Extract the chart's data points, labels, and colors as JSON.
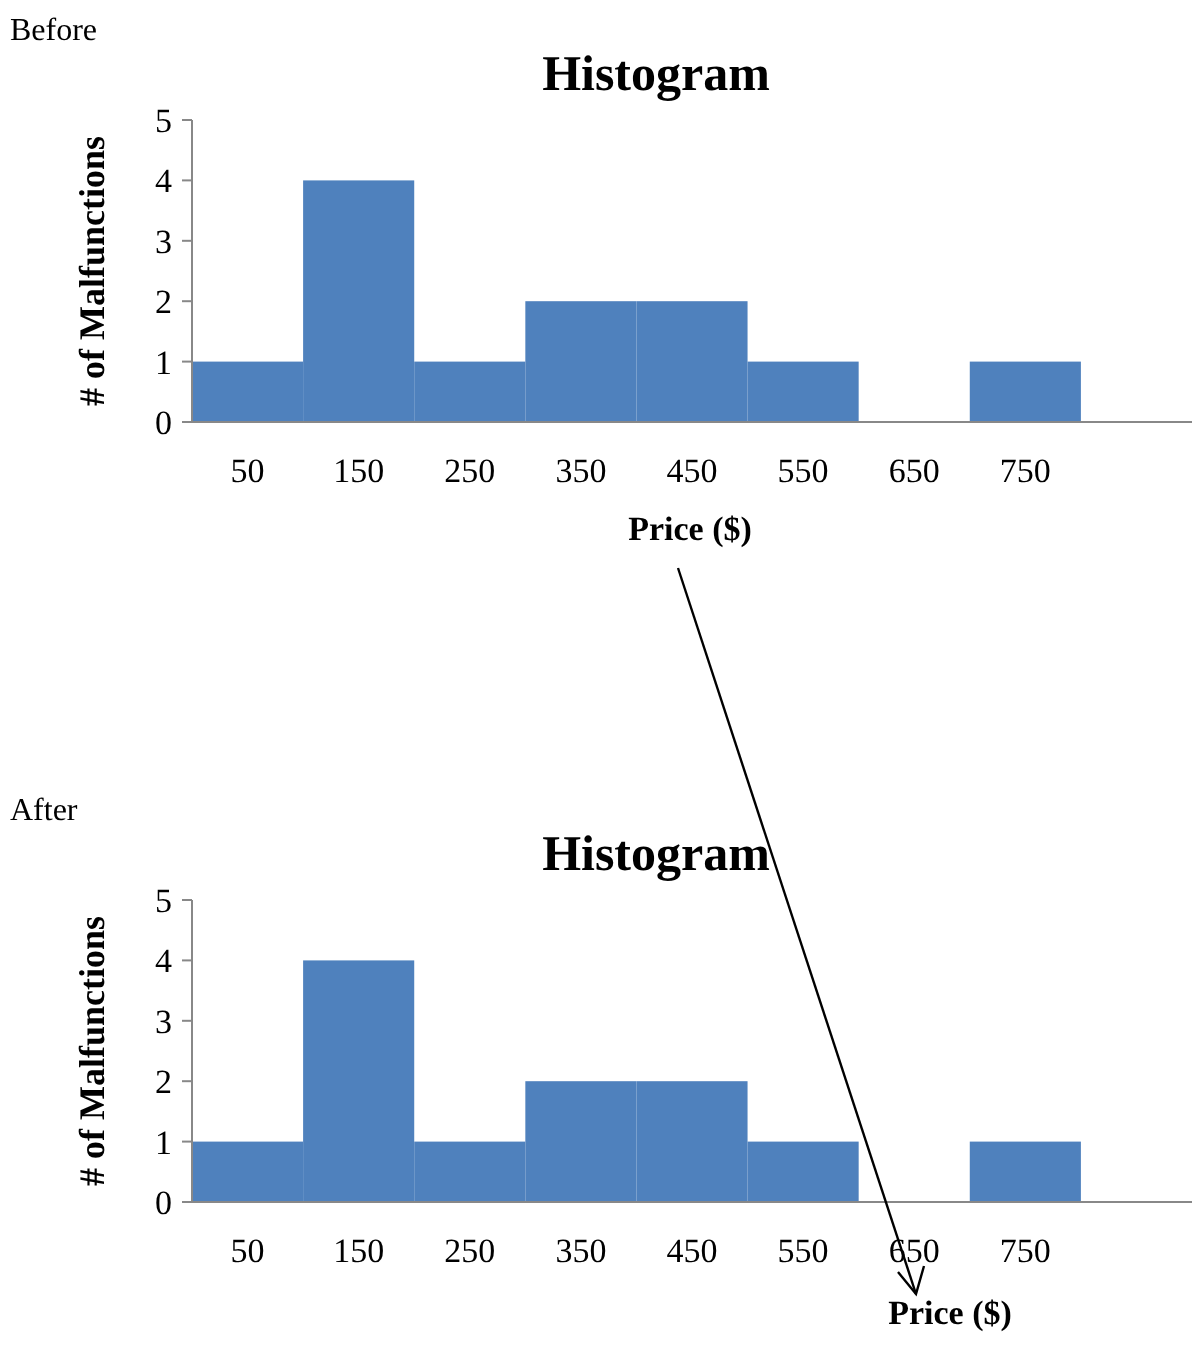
{
  "chart_data": [
    {
      "type": "bar",
      "title": "Histogram",
      "xlabel": "Price ($)",
      "ylabel": "# of Malfunctions",
      "annotations": [
        "Before"
      ],
      "categories": [
        "50",
        "150",
        "250",
        "350",
        "450",
        "550",
        "650",
        "750",
        null
      ],
      "values": [
        1,
        4,
        1,
        2,
        2,
        1,
        0,
        1,
        0
      ],
      "color": "#4f81bd",
      "ylim": [
        0,
        5
      ],
      "yticks": [
        0,
        1,
        2,
        3,
        4,
        5
      ],
      "grid": false
    },
    {
      "type": "bar",
      "title": "Histogram",
      "xlabel": "Price ($)",
      "ylabel": "# of Malfunctions",
      "annotations": [
        "After"
      ],
      "categories": [
        "50",
        "150",
        "250",
        "350",
        "450",
        "550",
        "650",
        "750",
        null
      ],
      "values": [
        1,
        4,
        1,
        2,
        2,
        1,
        0,
        1,
        0
      ],
      "color": "#4f81bd",
      "ylim": [
        0,
        5
      ],
      "yticks": [
        0,
        1,
        2,
        3,
        4,
        5
      ],
      "grid": false
    }
  ]
}
